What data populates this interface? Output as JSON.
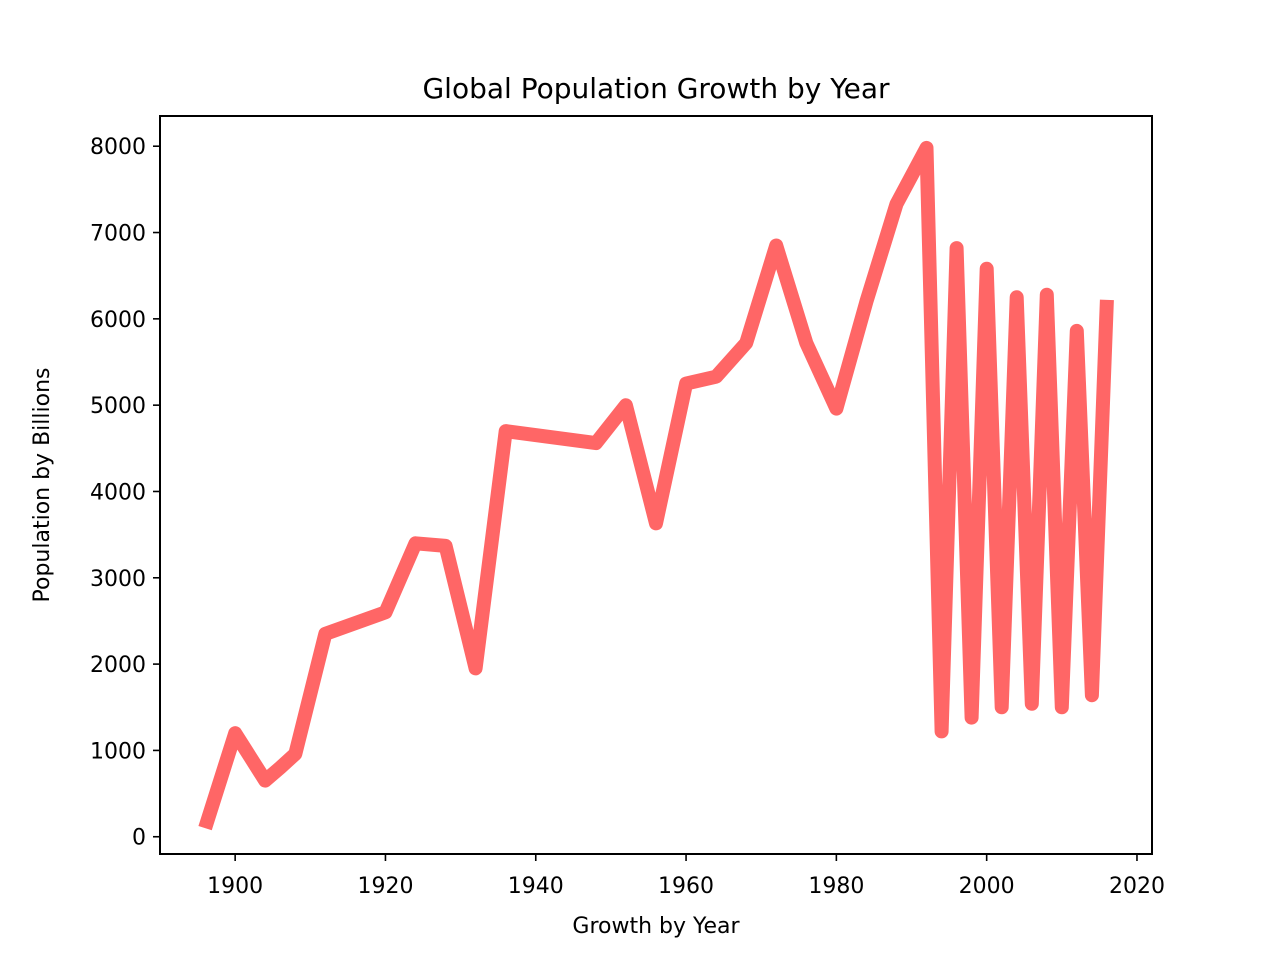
{
  "chart_data": {
    "type": "line",
    "title": "Global Population Growth by Year",
    "xlabel": "Growth by Year",
    "ylabel": "Population by Billions",
    "xlim": [
      1890,
      2022
    ],
    "ylim": [
      -200,
      8350
    ],
    "xticks": [
      1900,
      1920,
      1940,
      1960,
      1980,
      2000,
      2020
    ],
    "yticks": [
      0,
      1000,
      2000,
      3000,
      4000,
      5000,
      6000,
      7000,
      8000
    ],
    "grid": false,
    "line_color": "#ff6666",
    "series": [
      {
        "x": [
          1896,
          1900,
          1904,
          1906,
          1908,
          1912,
          1920,
          1924,
          1928,
          1932,
          1936,
          1948,
          1952,
          1956,
          1960,
          1964,
          1968,
          1972,
          1976,
          1980,
          1984,
          1988,
          1992,
          1994,
          1996,
          1998,
          2000,
          2002,
          2004,
          2006,
          2008,
          2010,
          2012,
          2014,
          2016
        ],
        "y": [
          100,
          1200,
          650,
          800,
          960,
          2350,
          2600,
          3400,
          3370,
          1950,
          4700,
          4560,
          5000,
          3630,
          5250,
          5330,
          5720,
          6850,
          5720,
          4960,
          6200,
          7330,
          7980,
          1220,
          6820,
          1380,
          6580,
          1500,
          6250,
          1540,
          6280,
          1500,
          5860,
          1640,
          6220
        ]
      }
    ]
  }
}
